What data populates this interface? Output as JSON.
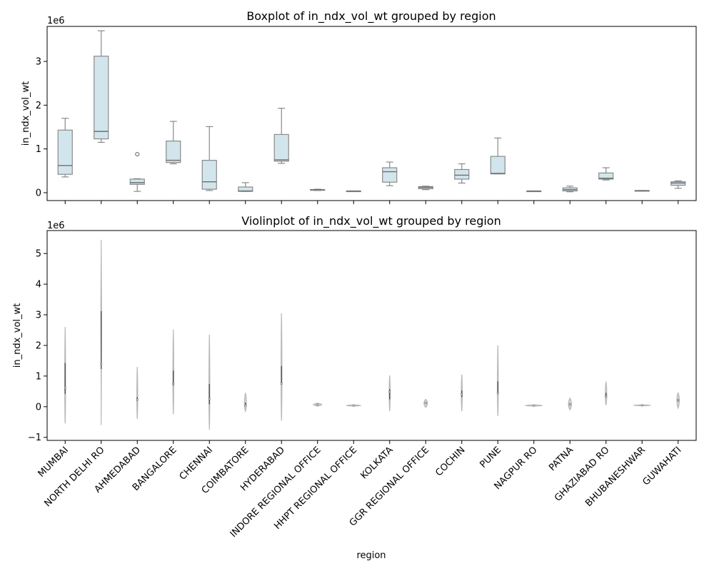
{
  "chart_data": [
    {
      "type": "box",
      "title": "Boxplot of in_ndx_vol_wt grouped by region",
      "ylabel": "in_ndx_vol_wt",
      "offset_text": "1e6",
      "ylim": [
        -0.18,
        3.8
      ],
      "yticks": [
        0,
        1,
        2,
        3
      ],
      "categories": [
        "MUMBAI",
        "NORTH DELHI RO",
        "AHMEDABAD",
        "BANGALORE",
        "CHENNAI",
        "COIMBATORE",
        "HYDERABAD",
        "INDORE REGIONAL OFFICE",
        "HHPT REGIONAL OFFICE",
        "KOLKATA",
        "GGR REGIONAL OFFICE",
        "COCHIN",
        "PUNE",
        "NAGPUR RO",
        "PATNA",
        "GHAZIABAD RO",
        "BHUBANESHWAR",
        "GUWAHATI"
      ],
      "boxes": [
        {
          "min": 0.36,
          "q1": 0.42,
          "median": 0.62,
          "q3": 1.43,
          "max": 1.7,
          "outliers": []
        },
        {
          "min": 1.15,
          "q1": 1.23,
          "median": 1.4,
          "q3": 3.12,
          "max": 3.7,
          "outliers": []
        },
        {
          "min": 0.03,
          "q1": 0.19,
          "median": 0.23,
          "q3": 0.31,
          "max": 0.32,
          "outliers": [
            0.88
          ]
        },
        {
          "min": 0.66,
          "q1": 0.69,
          "median": 0.74,
          "q3": 1.18,
          "max": 1.63,
          "outliers": []
        },
        {
          "min": 0.05,
          "q1": 0.08,
          "median": 0.25,
          "q3": 0.74,
          "max": 1.51,
          "outliers": []
        },
        {
          "min": 0.03,
          "q1": 0.03,
          "median": 0.04,
          "q3": 0.13,
          "max": 0.23,
          "outliers": []
        },
        {
          "min": 0.67,
          "q1": 0.72,
          "median": 0.75,
          "q3": 1.33,
          "max": 1.93,
          "outliers": []
        },
        {
          "min": 0.05,
          "q1": 0.06,
          "median": 0.07,
          "q3": 0.07,
          "max": 0.08,
          "outliers": []
        },
        {
          "min": 0.03,
          "q1": 0.03,
          "median": 0.035,
          "q3": 0.04,
          "max": 0.04,
          "outliers": []
        },
        {
          "min": 0.16,
          "q1": 0.24,
          "median": 0.48,
          "q3": 0.57,
          "max": 0.7,
          "outliers": []
        },
        {
          "min": 0.07,
          "q1": 0.09,
          "median": 0.12,
          "q3": 0.14,
          "max": 0.15,
          "outliers": []
        },
        {
          "min": 0.22,
          "q1": 0.31,
          "median": 0.4,
          "q3": 0.53,
          "max": 0.66,
          "outliers": []
        },
        {
          "min": 0.43,
          "q1": 0.43,
          "median": 0.44,
          "q3": 0.83,
          "max": 1.25,
          "outliers": []
        },
        {
          "min": 0.03,
          "q1": 0.03,
          "median": 0.035,
          "q3": 0.04,
          "max": 0.04,
          "outliers": []
        },
        {
          "min": 0.02,
          "q1": 0.04,
          "median": 0.07,
          "q3": 0.11,
          "max": 0.15,
          "outliers": []
        },
        {
          "min": 0.29,
          "q1": 0.31,
          "median": 0.33,
          "q3": 0.45,
          "max": 0.57,
          "outliers": []
        },
        {
          "min": 0.04,
          "q1": 0.04,
          "median": 0.045,
          "q3": 0.05,
          "max": 0.05,
          "outliers": []
        },
        {
          "min": 0.1,
          "q1": 0.17,
          "median": 0.22,
          "q3": 0.25,
          "max": 0.27,
          "outliers": []
        }
      ],
      "colors": {
        "box_fill": "#d2e5ec",
        "box_edge": "#8a8a8a"
      }
    },
    {
      "type": "violin",
      "title": "Violinplot of in_ndx_vol_wt grouped by region",
      "ylabel": "in_ndx_vol_wt",
      "xlabel": "region",
      "offset_text": "1e6",
      "ylim": [
        -1.1,
        5.75
      ],
      "yticks": [
        -1,
        0,
        1,
        2,
        3,
        4,
        5
      ],
      "categories": [
        "MUMBAI",
        "NORTH DELHI RO",
        "AHMEDABAD",
        "BANGALORE",
        "CHENNAI",
        "COIMBATORE",
        "HYDERABAD",
        "INDORE REGIONAL OFFICE",
        "HHPT REGIONAL OFFICE",
        "KOLKATA",
        "GGR REGIONAL OFFICE",
        "COCHIN",
        "PUNE",
        "NAGPUR RO",
        "PATNA",
        "GHAZIABAD RO",
        "BHUBANESHWAR",
        "GUWAHATI"
      ],
      "violins": [
        {
          "min": -0.55,
          "max": 2.6,
          "q1": 0.42,
          "median": 0.62,
          "q3": 1.43,
          "width": 0.03
        },
        {
          "min": -0.6,
          "max": 5.45,
          "q1": 1.23,
          "median": 1.4,
          "q3": 3.12,
          "width": 0.02
        },
        {
          "min": -0.4,
          "max": 1.3,
          "q1": 0.19,
          "median": 0.23,
          "q3": 0.31,
          "width": 0.03
        },
        {
          "min": -0.25,
          "max": 2.52,
          "q1": 0.69,
          "median": 0.74,
          "q3": 1.18,
          "width": 0.03
        },
        {
          "min": -0.75,
          "max": 2.35,
          "q1": 0.08,
          "median": 0.25,
          "q3": 0.74,
          "width": 0.03
        },
        {
          "min": -0.15,
          "max": 0.45,
          "q1": 0.03,
          "median": 0.04,
          "q3": 0.13,
          "width": 0.08
        },
        {
          "min": -0.45,
          "max": 3.05,
          "q1": 0.72,
          "median": 0.75,
          "q3": 1.33,
          "width": 0.03
        },
        {
          "min": 0.02,
          "max": 0.11,
          "q1": 0.06,
          "median": 0.07,
          "q3": 0.07,
          "width": 0.35
        },
        {
          "min": 0.02,
          "max": 0.06,
          "q1": 0.03,
          "median": 0.035,
          "q3": 0.04,
          "width": 0.6
        },
        {
          "min": -0.15,
          "max": 1.02,
          "q1": 0.24,
          "median": 0.48,
          "q3": 0.57,
          "width": 0.04
        },
        {
          "min": -0.02,
          "max": 0.24,
          "q1": 0.09,
          "median": 0.12,
          "q3": 0.14,
          "width": 0.14
        },
        {
          "min": -0.15,
          "max": 1.05,
          "q1": 0.31,
          "median": 0.4,
          "q3": 0.53,
          "width": 0.04
        },
        {
          "min": -0.3,
          "max": 2.0,
          "q1": 0.43,
          "median": 0.44,
          "q3": 0.83,
          "width": 0.03
        },
        {
          "min": 0.02,
          "max": 0.06,
          "q1": 0.03,
          "median": 0.035,
          "q3": 0.04,
          "width": 0.7
        },
        {
          "min": -0.1,
          "max": 0.28,
          "q1": 0.04,
          "median": 0.07,
          "q3": 0.11,
          "width": 0.12
        },
        {
          "min": 0.05,
          "max": 0.82,
          "q1": 0.31,
          "median": 0.33,
          "q3": 0.45,
          "width": 0.06
        },
        {
          "min": 0.03,
          "max": 0.06,
          "q1": 0.04,
          "median": 0.045,
          "q3": 0.05,
          "width": 0.7
        },
        {
          "min": -0.05,
          "max": 0.45,
          "q1": 0.17,
          "median": 0.22,
          "q3": 0.25,
          "width": 0.1
        }
      ],
      "colors": {
        "violin_fill": "#c9dfc9",
        "violin_edge": "#b8b8b8",
        "inner": "#555555"
      }
    }
  ]
}
